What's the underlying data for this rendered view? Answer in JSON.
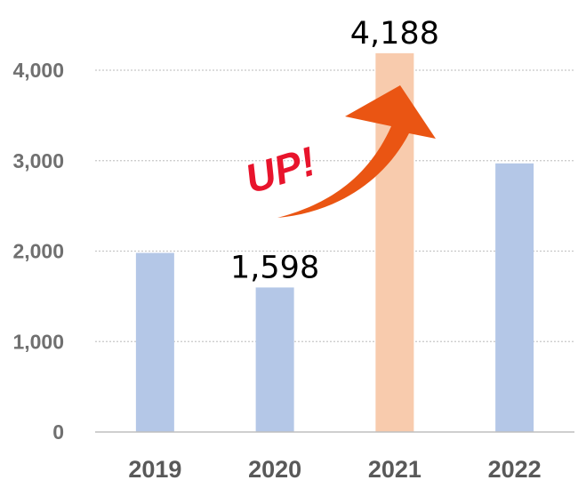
{
  "chart_data": {
    "type": "bar",
    "categories": [
      "2019",
      "2020",
      "2021",
      "2022"
    ],
    "values": [
      1980,
      1598,
      4188,
      2970
    ],
    "data_labels": [
      null,
      "1,598",
      "4,188",
      null
    ],
    "highlight_index": 2,
    "yticks": [
      "0",
      "1,000",
      "2,000",
      "3,000",
      "4,000"
    ],
    "ytick_values": [
      0,
      1000,
      2000,
      3000,
      4000
    ],
    "ylim": [
      0,
      4000
    ],
    "grid": "horizontal-dotted",
    "title": "",
    "xlabel": "",
    "ylabel": ""
  },
  "annotation": {
    "text": "UP!",
    "icon": "up-arrow-icon"
  },
  "colors": {
    "bar": "#b4c7e7",
    "bar_highlight": "#f8cbad",
    "grid": "#c8c8c8",
    "axis": "#bfbfbf",
    "arrow": "#ea5513",
    "up_text": "#e8142c"
  }
}
